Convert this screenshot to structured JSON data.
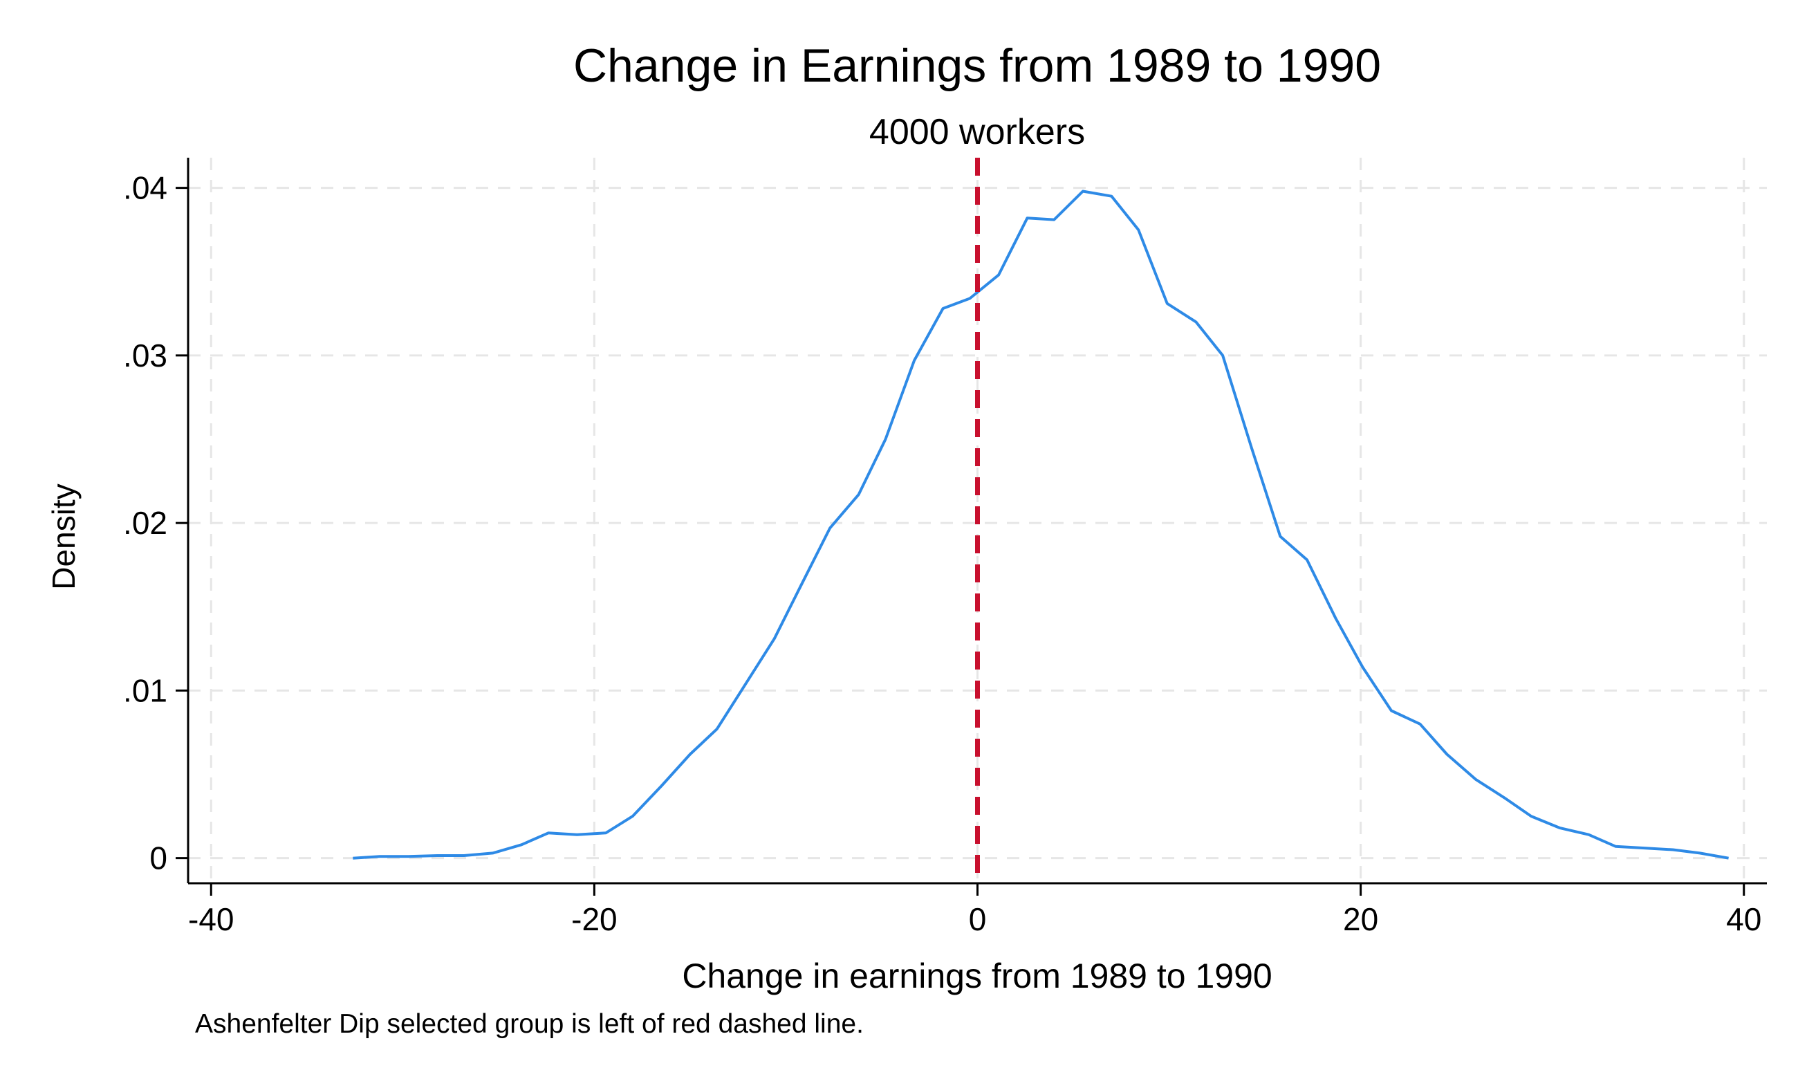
{
  "chart_data": {
    "type": "line",
    "title": "Change in Earnings from 1989 to 1990",
    "subtitle": "4000 workers",
    "xlabel": "Change in earnings from 1989 to 1990",
    "ylabel": "Density",
    "note": "Ashenfelter Dip selected group is left of red dashed line.",
    "xlim": [
      -41.2,
      41.2
    ],
    "ylim": [
      -0.0015,
      0.0418
    ],
    "x_ticks": [
      -40,
      -20,
      0,
      20,
      40
    ],
    "x_tick_labels": [
      "-40",
      "-20",
      "0",
      "20",
      "40"
    ],
    "y_ticks": [
      0,
      0.01,
      0.02,
      0.03,
      0.04
    ],
    "y_tick_labels": [
      "0",
      ".01",
      ".02",
      ".03",
      ".04"
    ],
    "grid": true,
    "reference_line": {
      "x": 0,
      "color": "#c8102e",
      "style": "dashed"
    },
    "series": [
      {
        "color": "#2e8ae6",
        "x": [
          -32.6,
          -31.2,
          -29.7,
          -28.2,
          -26.8,
          -25.3,
          -23.8,
          -22.4,
          -20.9,
          -19.4,
          -18.0,
          -16.5,
          -15.0,
          -13.6,
          -12.1,
          -10.6,
          -9.2,
          -7.7,
          -6.2,
          -4.8,
          -3.3,
          -1.8,
          -0.4,
          1.1,
          2.6,
          4.0,
          5.5,
          7.0,
          8.4,
          9.9,
          11.4,
          12.8,
          14.3,
          15.8,
          17.2,
          18.7,
          20.1,
          21.6,
          23.1,
          24.5,
          26.0,
          27.5,
          28.9,
          30.4,
          31.9,
          33.3,
          34.8,
          36.3,
          37.7,
          39.2
        ],
        "y": [
          0.0,
          0.0001,
          0.0001,
          0.00015,
          0.00015,
          0.0003,
          0.0008,
          0.0015,
          0.0014,
          0.0015,
          0.0025,
          0.0043,
          0.0062,
          0.0077,
          0.0104,
          0.0131,
          0.0163,
          0.0197,
          0.0217,
          0.025,
          0.0297,
          0.0328,
          0.0334,
          0.0348,
          0.0382,
          0.0381,
          0.0398,
          0.0395,
          0.0375,
          0.0331,
          0.032,
          0.03,
          0.0245,
          0.0192,
          0.0178,
          0.0143,
          0.0114,
          0.0088,
          0.008,
          0.0062,
          0.0047,
          0.0036,
          0.0025,
          0.0018,
          0.0014,
          0.0007,
          0.0006,
          0.0005,
          0.0003,
          0.0
        ]
      }
    ]
  }
}
